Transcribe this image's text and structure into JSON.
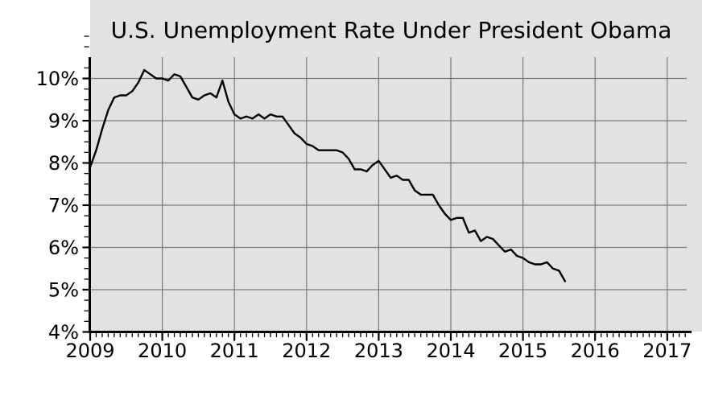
{
  "chart": {
    "title": "U.S. Unemployment Rate Under President Obama"
  },
  "chart_data": {
    "type": "line",
    "title": "U.S. Unemployment Rate Under President Obama",
    "xlabel": "",
    "ylabel": "",
    "x_unit": "month",
    "x_start": "2009-01",
    "x_end": "2015-08",
    "xlim": [
      2009,
      2017.33
    ],
    "ylim": [
      4,
      10.5
    ],
    "grid": true,
    "legend": "none",
    "background_color": "#e2e2e2",
    "grid_color": "#7b7b7b",
    "line_color": "#000000",
    "x_tick_values": [
      2009,
      2010,
      2011,
      2012,
      2013,
      2014,
      2015,
      2016,
      2017
    ],
    "x_tick_labels": [
      "2009",
      "2010",
      "2011",
      "2012",
      "2013",
      "2014",
      "2015",
      "2016",
      "2017"
    ],
    "y_tick_values": [
      4,
      5,
      6,
      7,
      8,
      9,
      10
    ],
    "y_tick_labels": [
      "4%",
      "5%",
      "6%",
      "7%",
      "8%",
      "9%",
      "10%"
    ],
    "y_minor_step": 0.25,
    "y_extra_minor_ticks": [
      10.75,
      11
    ],
    "x_minor_step_months": 1,
    "series": [
      {
        "name": "U.S. unemployment rate (%)",
        "start_year": 2009,
        "start_month": 1,
        "values": [
          7.9,
          8.3,
          8.8,
          9.25,
          9.55,
          9.6,
          9.6,
          9.7,
          9.9,
          10.2,
          10.1,
          10.0,
          10.0,
          9.95,
          10.1,
          10.05,
          9.8,
          9.55,
          9.5,
          9.6,
          9.65,
          9.55,
          9.95,
          9.45,
          9.15,
          9.05,
          9.1,
          9.05,
          9.15,
          9.05,
          9.15,
          9.1,
          9.1,
          8.9,
          8.7,
          8.6,
          8.45,
          8.4,
          8.3,
          8.3,
          8.3,
          8.3,
          8.25,
          8.1,
          7.85,
          7.85,
          7.8,
          7.95,
          8.05,
          7.85,
          7.65,
          7.7,
          7.6,
          7.6,
          7.35,
          7.25,
          7.25,
          7.25,
          7.0,
          6.8,
          6.65,
          6.7,
          6.7,
          6.35,
          6.4,
          6.15,
          6.25,
          6.2,
          6.05,
          5.9,
          5.95,
          5.8,
          5.75,
          5.65,
          5.6,
          5.6,
          5.65,
          5.5,
          5.45,
          5.2
        ]
      }
    ]
  }
}
